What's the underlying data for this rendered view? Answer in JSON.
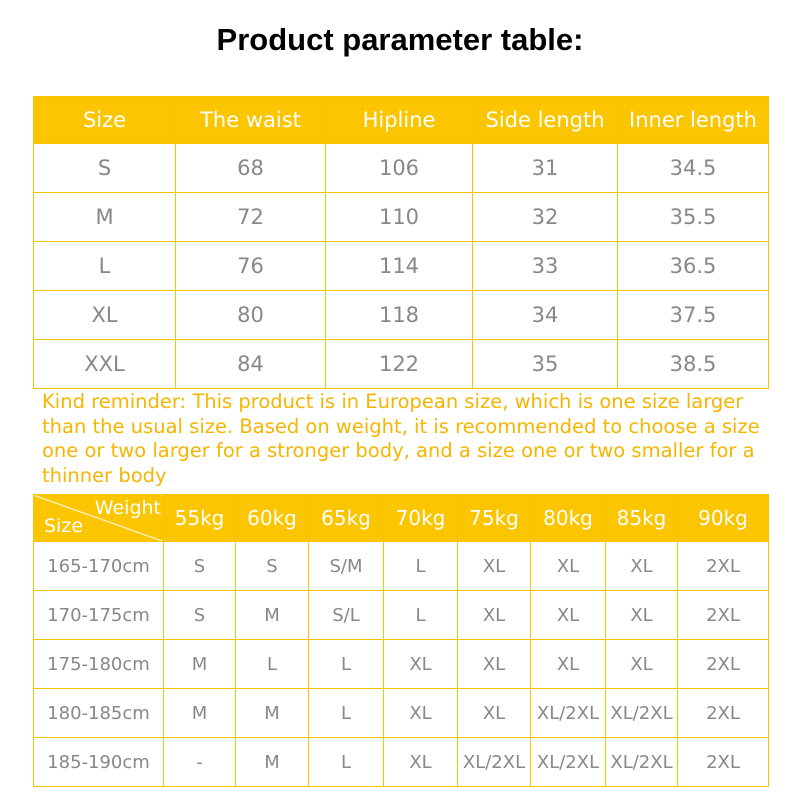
{
  "title": "Product parameter table:",
  "size_table": {
    "headers": [
      "Size",
      "The waist",
      "Hipline",
      "Side length",
      "Inner length"
    ],
    "rows": [
      [
        "S",
        "68",
        "106",
        "31",
        "34.5"
      ],
      [
        "M",
        "72",
        "110",
        "32",
        "35.5"
      ],
      [
        "L",
        "76",
        "114",
        "33",
        "36.5"
      ],
      [
        "XL",
        "80",
        "118",
        "34",
        "37.5"
      ],
      [
        "XXL",
        "84",
        "122",
        "35",
        "38.5"
      ]
    ]
  },
  "reminder": "Kind reminder: This product is in European size, which is one size larger than the usual size. Based on weight, it is recommended to choose a size one or two larger for a stronger body, and a size one or two smaller for a thinner body",
  "weight_table": {
    "corner_weight": "Weight",
    "corner_size": "Size",
    "headers": [
      "55kg",
      "60kg",
      "65kg",
      "70kg",
      "75kg",
      "80kg",
      "85kg",
      "90kg"
    ],
    "rows": [
      [
        "165-170cm",
        "S",
        "S",
        "S/M",
        "L",
        "XL",
        "XL",
        "XL",
        "2XL"
      ],
      [
        "170-175cm",
        "S",
        "M",
        "S/L",
        "L",
        "XL",
        "XL",
        "XL",
        "2XL"
      ],
      [
        "175-180cm",
        "M",
        "L",
        "L",
        "XL",
        "XL",
        "XL",
        "XL",
        "2XL"
      ],
      [
        "180-185cm",
        "M",
        "M",
        "L",
        "XL",
        "XL",
        "XL/2XL",
        "XL/2XL",
        "2XL"
      ],
      [
        "185-190cm",
        "-",
        "M",
        "L",
        "XL",
        "XL/2XL",
        "XL/2XL",
        "XL/2XL",
        "2XL"
      ]
    ]
  },
  "colors": {
    "accent": "#fbc500",
    "text": "#888888",
    "note": "#f5b500"
  }
}
